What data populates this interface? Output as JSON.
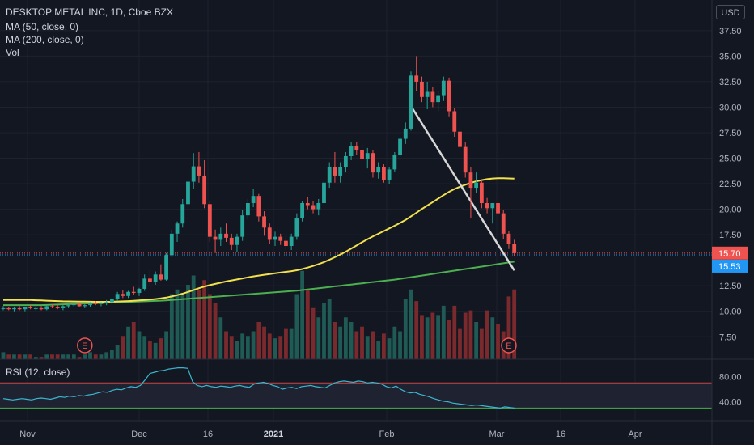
{
  "chart_data": {
    "type": "candlestick",
    "legend": {
      "title": "DESKTOP METAL INC, 1D, Cboe BZX",
      "ma50": "MA (50, close, 0)",
      "ma200": "MA (200, close, 0)",
      "vol": "Vol"
    },
    "currency": "USD",
    "y_ticks": [
      "37.50",
      "35.00",
      "32.50",
      "30.00",
      "27.50",
      "25.00",
      "22.50",
      "20.00",
      "17.50",
      "12.50",
      "10.00",
      "7.50"
    ],
    "y_tick_values": [
      37.5,
      35,
      32.5,
      30,
      27.5,
      25,
      22.5,
      20,
      17.5,
      12.5,
      10,
      7.5
    ],
    "ylim": [
      5.3,
      40.5
    ],
    "x_ticks": [
      "Nov",
      "Dec",
      "16",
      "2021",
      "Feb",
      "Mar",
      "16",
      "Apr"
    ],
    "price_labels": [
      {
        "text": "15.70",
        "value": 15.7,
        "color": "#ef5350"
      },
      {
        "text": "15.53",
        "value": 15.53,
        "color": "#2196f3"
      }
    ],
    "earnings_markers": [
      "E",
      "E"
    ],
    "candles": [
      [
        10.3,
        10.5,
        10.1,
        10.3
      ],
      [
        10.3,
        10.4,
        10.1,
        10.2
      ],
      [
        10.2,
        10.4,
        10.0,
        10.3
      ],
      [
        10.3,
        10.5,
        10.1,
        10.2
      ],
      [
        10.2,
        10.4,
        10.0,
        10.4
      ],
      [
        10.4,
        10.6,
        10.2,
        10.3
      ],
      [
        10.3,
        10.5,
        10.1,
        10.3
      ],
      [
        10.3,
        10.5,
        10.1,
        10.2
      ],
      [
        10.2,
        10.6,
        10.1,
        10.5
      ],
      [
        10.5,
        10.7,
        10.3,
        10.4
      ],
      [
        10.4,
        10.6,
        10.2,
        10.3
      ],
      [
        10.3,
        10.6,
        10.1,
        10.5
      ],
      [
        10.5,
        10.8,
        10.3,
        10.6
      ],
      [
        10.6,
        10.9,
        10.4,
        10.7
      ],
      [
        10.7,
        10.9,
        10.4,
        10.5
      ],
      [
        10.5,
        10.7,
        10.3,
        10.6
      ],
      [
        10.6,
        10.9,
        10.4,
        10.8
      ],
      [
        10.8,
        11.0,
        10.6,
        10.7
      ],
      [
        10.7,
        10.9,
        10.5,
        10.8
      ],
      [
        10.8,
        11.1,
        10.6,
        10.9
      ],
      [
        10.9,
        11.3,
        10.7,
        11.2
      ],
      [
        11.2,
        11.9,
        11.0,
        11.7
      ],
      [
        11.7,
        12.1,
        11.3,
        11.5
      ],
      [
        11.5,
        12.0,
        11.3,
        11.9
      ],
      [
        11.9,
        12.4,
        11.6,
        11.8
      ],
      [
        11.8,
        12.3,
        11.5,
        12.2
      ],
      [
        12.2,
        13.6,
        12.0,
        13.2
      ],
      [
        13.2,
        14.0,
        12.6,
        12.9
      ],
      [
        12.9,
        13.9,
        12.6,
        13.6
      ],
      [
        13.6,
        14.6,
        13.0,
        13.1
      ],
      [
        13.1,
        15.7,
        13.0,
        15.5
      ],
      [
        15.5,
        18.0,
        15.3,
        17.6
      ],
      [
        17.6,
        18.8,
        16.8,
        18.6
      ],
      [
        18.6,
        21.0,
        18.2,
        20.5
      ],
      [
        20.5,
        23.0,
        20.0,
        22.7
      ],
      [
        22.7,
        25.5,
        22.0,
        24.2
      ],
      [
        24.2,
        25.6,
        22.6,
        23.3
      ],
      [
        23.3,
        24.8,
        20.1,
        20.5
      ],
      [
        20.5,
        20.8,
        16.8,
        17.3
      ],
      [
        17.3,
        18.0,
        15.7,
        17.0
      ],
      [
        17.0,
        18.2,
        16.4,
        17.6
      ],
      [
        17.6,
        18.6,
        16.8,
        17.2
      ],
      [
        17.2,
        17.6,
        16.0,
        16.5
      ],
      [
        16.5,
        17.6,
        15.8,
        17.3
      ],
      [
        17.3,
        19.9,
        16.9,
        19.4
      ],
      [
        19.4,
        21.0,
        19.0,
        20.6
      ],
      [
        20.6,
        22.0,
        20.2,
        21.3
      ],
      [
        21.3,
        21.5,
        18.8,
        19.3
      ],
      [
        19.3,
        19.8,
        17.4,
        18.2
      ],
      [
        18.2,
        18.6,
        16.6,
        17.0
      ],
      [
        17.0,
        17.8,
        16.4,
        17.3
      ],
      [
        17.3,
        17.6,
        16.5,
        16.9
      ],
      [
        16.9,
        17.4,
        16.0,
        16.4
      ],
      [
        16.4,
        17.6,
        16.0,
        17.3
      ],
      [
        17.3,
        19.6,
        17.0,
        19.1
      ],
      [
        19.1,
        20.8,
        18.8,
        20.6
      ],
      [
        20.6,
        21.2,
        20.0,
        20.4
      ],
      [
        20.4,
        20.8,
        19.6,
        20.0
      ],
      [
        20.0,
        21.0,
        19.4,
        20.6
      ],
      [
        20.6,
        23.0,
        20.3,
        22.6
      ],
      [
        22.6,
        24.6,
        22.1,
        24.1
      ],
      [
        24.1,
        25.6,
        22.6,
        23.3
      ],
      [
        23.3,
        24.6,
        22.6,
        24.1
      ],
      [
        24.1,
        25.6,
        23.6,
        25.2
      ],
      [
        25.2,
        26.6,
        24.8,
        26.2
      ],
      [
        26.2,
        26.6,
        25.3,
        25.8
      ],
      [
        25.8,
        26.6,
        24.6,
        24.9
      ],
      [
        24.9,
        26.0,
        24.0,
        25.5
      ],
      [
        25.5,
        25.8,
        23.1,
        23.6
      ],
      [
        23.6,
        24.6,
        23.0,
        24.1
      ],
      [
        24.1,
        24.4,
        22.6,
        22.9
      ],
      [
        22.9,
        24.1,
        22.5,
        23.9
      ],
      [
        23.9,
        25.6,
        23.7,
        25.3
      ],
      [
        25.3,
        27.1,
        25.1,
        26.9
      ],
      [
        26.9,
        28.5,
        26.4,
        27.9
      ],
      [
        27.9,
        33.5,
        27.7,
        33.1
      ],
      [
        33.1,
        35.0,
        31.6,
        32.5
      ],
      [
        32.5,
        33.0,
        30.5,
        31.0
      ],
      [
        31.0,
        32.5,
        29.8,
        31.5
      ],
      [
        31.5,
        32.0,
        30.0,
        30.5
      ],
      [
        30.5,
        31.6,
        29.6,
        31.1
      ],
      [
        31.1,
        33.0,
        30.6,
        32.6
      ],
      [
        32.6,
        32.9,
        29.1,
        29.6
      ],
      [
        29.6,
        29.9,
        27.1,
        27.6
      ],
      [
        27.6,
        28.1,
        25.6,
        26.1
      ],
      [
        26.1,
        26.6,
        23.1,
        23.6
      ],
      [
        23.6,
        24.1,
        19.1,
        22.1
      ],
      [
        22.1,
        23.6,
        21.6,
        22.6
      ],
      [
        22.6,
        22.9,
        20.1,
        20.6
      ],
      [
        20.6,
        21.1,
        19.6,
        20.1
      ],
      [
        20.1,
        20.6,
        18.6,
        20.6
      ],
      [
        20.6,
        21.1,
        19.1,
        19.6
      ],
      [
        19.6,
        19.9,
        17.1,
        17.6
      ],
      [
        17.6,
        17.9,
        16.1,
        16.6
      ],
      [
        16.6,
        17.0,
        15.4,
        15.7
      ]
    ],
    "volume": [
      3,
      2,
      2,
      2,
      2,
      2,
      1,
      1,
      2,
      2,
      2,
      2,
      2,
      2,
      1,
      2,
      3,
      2,
      2,
      3,
      4,
      6,
      10,
      14,
      16,
      12,
      10,
      8,
      7,
      9,
      12,
      28,
      30,
      28,
      32,
      36,
      30,
      34,
      28,
      24,
      18,
      12,
      10,
      8,
      11,
      10,
      12,
      16,
      14,
      11,
      9,
      10,
      13,
      13,
      28,
      38,
      30,
      22,
      18,
      24,
      26,
      16,
      14,
      18,
      16,
      12,
      14,
      10,
      12,
      8,
      11,
      9,
      14,
      12,
      26,
      30,
      25,
      19,
      18,
      20,
      19,
      23,
      17,
      23,
      13,
      20,
      21,
      16,
      13,
      21,
      18,
      15,
      12,
      27,
      30
    ],
    "ma50": [
      11.1,
      11.1,
      11.1,
      11.1,
      11.1,
      11.1,
      11.08,
      11.06,
      11.04,
      11.02,
      11.0,
      10.98,
      10.97,
      10.96,
      10.95,
      10.95,
      10.94,
      10.93,
      10.93,
      10.93,
      10.94,
      10.96,
      10.98,
      11.0,
      11.03,
      11.06,
      11.1,
      11.15,
      11.2,
      11.26,
      11.34,
      11.45,
      11.58,
      11.73,
      11.9,
      12.08,
      12.26,
      12.42,
      12.56,
      12.68,
      12.8,
      12.92,
      13.02,
      13.12,
      13.22,
      13.32,
      13.42,
      13.5,
      13.58,
      13.65,
      13.72,
      13.79,
      13.86,
      13.93,
      14.02,
      14.14,
      14.28,
      14.44,
      14.62,
      14.82,
      15.05,
      15.3,
      15.56,
      15.84,
      16.14,
      16.45,
      16.76,
      17.06,
      17.34,
      17.6,
      17.86,
      18.12,
      18.38,
      18.66,
      18.95,
      19.3,
      19.66,
      20.02,
      20.36,
      20.7,
      21.04,
      21.38,
      21.7,
      21.98,
      22.2,
      22.4,
      22.58,
      22.73,
      22.85,
      22.95,
      23.01,
      23.04,
      23.04,
      23.02,
      23.0
    ],
    "ma200": [
      10.6,
      10.6,
      10.6,
      10.6,
      10.6,
      10.6,
      10.6,
      10.6,
      10.62,
      10.64,
      10.66,
      10.68,
      10.7,
      10.72,
      10.74,
      10.76,
      10.78,
      10.8,
      10.82,
      10.84,
      10.86,
      10.88,
      10.9,
      10.92,
      10.94,
      10.96,
      10.98,
      11.0,
      11.02,
      11.04,
      11.06,
      11.1,
      11.14,
      11.18,
      11.22,
      11.26,
      11.3,
      11.34,
      11.38,
      11.42,
      11.46,
      11.5,
      11.54,
      11.58,
      11.62,
      11.66,
      11.7,
      11.74,
      11.78,
      11.82,
      11.86,
      11.9,
      11.94,
      11.98,
      12.02,
      12.08,
      12.14,
      12.2,
      12.26,
      12.32,
      12.38,
      12.44,
      12.5,
      12.56,
      12.62,
      12.68,
      12.74,
      12.8,
      12.86,
      12.92,
      12.98,
      13.04,
      13.1,
      13.18,
      13.26,
      13.34,
      13.42,
      13.5,
      13.58,
      13.66,
      13.74,
      13.82,
      13.9,
      13.98,
      14.06,
      14.14,
      14.22,
      14.3,
      14.38,
      14.46,
      14.54,
      14.62,
      14.7,
      14.78,
      14.86
    ],
    "trend_line": {
      "start_index": 75,
      "start_value": 30.1,
      "end_index": 94,
      "end_value": 14.0
    },
    "rsi": {
      "label": "RSI (12, close)",
      "ticks": [
        "80.00",
        "40.00"
      ],
      "tick_values": [
        80,
        40
      ],
      "ylim": [
        10,
        105
      ],
      "upper": 70,
      "lower": 30,
      "values": [
        45,
        44,
        43,
        44,
        45,
        44,
        43,
        45,
        46,
        45,
        44,
        46,
        48,
        47,
        49,
        48,
        50,
        49,
        51,
        52,
        54,
        56,
        55,
        58,
        60,
        59,
        62,
        64,
        63,
        66,
        75,
        85,
        87,
        89,
        90,
        92,
        93,
        94,
        94,
        93,
        72,
        66,
        64,
        66,
        64,
        63,
        65,
        64,
        63,
        65,
        66,
        64,
        63,
        68,
        70,
        71,
        69,
        66,
        64,
        60,
        62,
        63,
        61,
        64,
        65,
        66,
        64,
        63,
        62,
        66,
        70,
        72,
        73,
        72,
        71,
        73,
        72,
        70,
        71,
        70,
        68,
        64,
        62,
        65,
        60,
        56,
        54,
        55,
        52,
        50,
        48,
        45,
        43,
        41,
        40,
        38,
        37,
        36,
        35,
        34,
        35,
        34,
        33,
        32,
        31,
        30,
        32,
        31,
        30
      ],
      "rsi_start_index": -14
    }
  }
}
